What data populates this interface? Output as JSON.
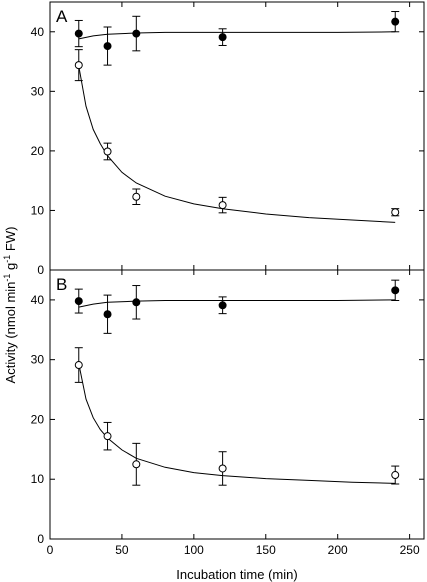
{
  "chart_data": {
    "type": "scatter",
    "xlabel": "Incubation time (min)",
    "ylabel": {
      "parts": [
        "Activity (nmol min",
        "-1",
        " g",
        "-1",
        " FW)"
      ]
    },
    "xlim": [
      0,
      260
    ],
    "xticks": [
      "0",
      "50",
      "100",
      "150",
      "200",
      "250"
    ],
    "xtick_values": [
      0,
      50,
      100,
      150,
      200,
      250
    ],
    "ylim": [
      0,
      45
    ],
    "yticks": [
      "0",
      "10",
      "20",
      "30",
      "40"
    ],
    "ytick_values": [
      0,
      10,
      20,
      30,
      40
    ],
    "grid": false,
    "panels": [
      {
        "label": "A",
        "series": [
          {
            "marker": "filled-circle",
            "x": [
              20,
              40,
              60,
              120,
              240
            ],
            "y": [
              39.7,
              37.6,
              39.7,
              39.1,
              41.7
            ],
            "err": [
              2.2,
              3.2,
              2.9,
              1.4,
              1.7
            ],
            "fit": "flat"
          },
          {
            "marker": "open-circle",
            "x": [
              20,
              40,
              60,
              120,
              240
            ],
            "y": [
              34.4,
              19.9,
              12.3,
              10.9,
              9.7
            ],
            "err": [
              2.6,
              1.4,
              1.3,
              1.3,
              0.6
            ],
            "fit": "decay"
          }
        ],
        "fit_curves": [
          {
            "x": [
              20,
              30,
              40,
              60,
              80,
              120,
              160,
              200,
              240
            ],
            "y": [
              38.8,
              39.3,
              39.6,
              39.8,
              39.9,
              39.9,
              39.9,
              39.9,
              40.0
            ]
          },
          {
            "x": [
              20,
              25,
              30,
              35,
              40,
              50,
              60,
              80,
              100,
              120,
              150,
              180,
              210,
              240
            ],
            "y": [
              34.2,
              27.5,
              23.6,
              21.2,
              19.2,
              16.4,
              14.6,
              12.4,
              11.1,
              10.3,
              9.4,
              8.8,
              8.4,
              8.0
            ]
          }
        ]
      },
      {
        "label": "B",
        "series": [
          {
            "marker": "filled-circle",
            "x": [
              20,
              40,
              60,
              120,
              240
            ],
            "y": [
              39.8,
              37.6,
              39.6,
              39.1,
              41.6
            ],
            "err": [
              2.0,
              3.2,
              2.8,
              1.4,
              1.7
            ],
            "fit": "flat"
          },
          {
            "marker": "open-circle",
            "x": [
              20,
              40,
              60,
              120,
              240
            ],
            "y": [
              29.1,
              17.2,
              12.5,
              11.8,
              10.7
            ],
            "err": [
              2.9,
              2.3,
              3.5,
              2.8,
              1.5
            ],
            "fit": "decay"
          }
        ],
        "fit_curves": [
          {
            "x": [
              20,
              30,
              40,
              60,
              80,
              120,
              160,
              200,
              240
            ],
            "y": [
              38.8,
              39.3,
              39.6,
              39.8,
              39.9,
              39.9,
              39.9,
              39.9,
              40.0
            ]
          },
          {
            "x": [
              20,
              25,
              30,
              35,
              40,
              50,
              60,
              80,
              100,
              120,
              150,
              180,
              210,
              240
            ],
            "y": [
              29.3,
              23.4,
              20.3,
              18.3,
              16.9,
              14.9,
              13.5,
              12.0,
              11.1,
              10.6,
              10.1,
              9.8,
              9.5,
              9.3
            ]
          }
        ]
      }
    ]
  }
}
